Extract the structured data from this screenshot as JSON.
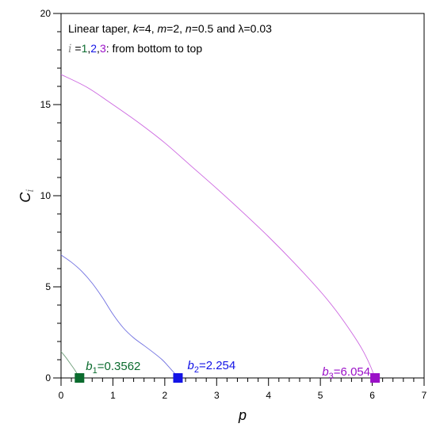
{
  "chart_data": {
    "type": "line",
    "annotation": {
      "line1_prefix": "Linear taper, ",
      "line1_k_sym": "k",
      "line1_k_val": "=4, ",
      "line1_m_sym": "m",
      "line1_m_val": "=2, ",
      "line1_n_sym": "n",
      "line1_n_val": "=0.5 and ",
      "line1_lambda_sym": "λ",
      "line1_lambda_val": "=0.03",
      "line2_i_sym": "i",
      "line2_eq": " =",
      "line2_one": "1",
      "line2_comma1": ",",
      "line2_two": "2",
      "line2_comma2": ",",
      "line2_three": "3",
      "line2_rest": ": from bottom to top"
    },
    "xlabel": "p",
    "ylabel_main": "C",
    "ylabel_sub": "i",
    "xlim": [
      0,
      7
    ],
    "ylim": [
      0,
      20
    ],
    "x_ticks": [
      "0",
      "1",
      "2",
      "3",
      "4",
      "5",
      "6",
      "7"
    ],
    "y_ticks": [
      "0",
      "5",
      "10",
      "15",
      "20"
    ],
    "colors": {
      "series1": "#0b6b2e",
      "series2": "#1414e6",
      "series3": "#9b10c8",
      "curve1": "#6f9e7a",
      "curve2": "#6f6fe0",
      "curve3": "#cc66e0"
    },
    "series": [
      {
        "x": [
          0,
          0.05,
          0.1,
          0.15,
          0.2,
          0.25,
          0.3,
          0.33,
          0.3562
        ],
        "y": [
          1.45,
          1.28,
          1.1,
          0.9,
          0.7,
          0.5,
          0.28,
          0.14,
          0
        ]
      },
      {
        "x": [
          0,
          0.2,
          0.4,
          0.6,
          0.8,
          1.0,
          1.2,
          1.4,
          1.6,
          1.8,
          1.95,
          2.05,
          2.15,
          2.22,
          2.254
        ],
        "y": [
          6.75,
          6.35,
          5.85,
          5.2,
          4.4,
          3.5,
          2.75,
          2.2,
          1.78,
          1.35,
          1.0,
          0.7,
          0.38,
          0.15,
          0
        ]
      },
      {
        "x": [
          0,
          0.5,
          1.0,
          1.5,
          2.0,
          2.5,
          3.0,
          3.5,
          4.0,
          4.5,
          5.0,
          5.3,
          5.6,
          5.8,
          5.95,
          6.054
        ],
        "y": [
          16.65,
          15.95,
          15.0,
          14.0,
          12.9,
          11.65,
          10.4,
          9.1,
          7.75,
          6.3,
          4.75,
          3.7,
          2.5,
          1.6,
          0.75,
          0
        ]
      }
    ],
    "markers": [
      {
        "sym": "b",
        "sub": "1",
        "eq": "=0.3562",
        "x": 0.3562,
        "y": 0
      },
      {
        "sym": "b",
        "sub": "2",
        "eq": "=2.254",
        "x": 2.254,
        "y": 0
      },
      {
        "sym": "b",
        "sub": "3",
        "eq": "=6.054",
        "x": 6.054,
        "y": 0
      }
    ]
  }
}
